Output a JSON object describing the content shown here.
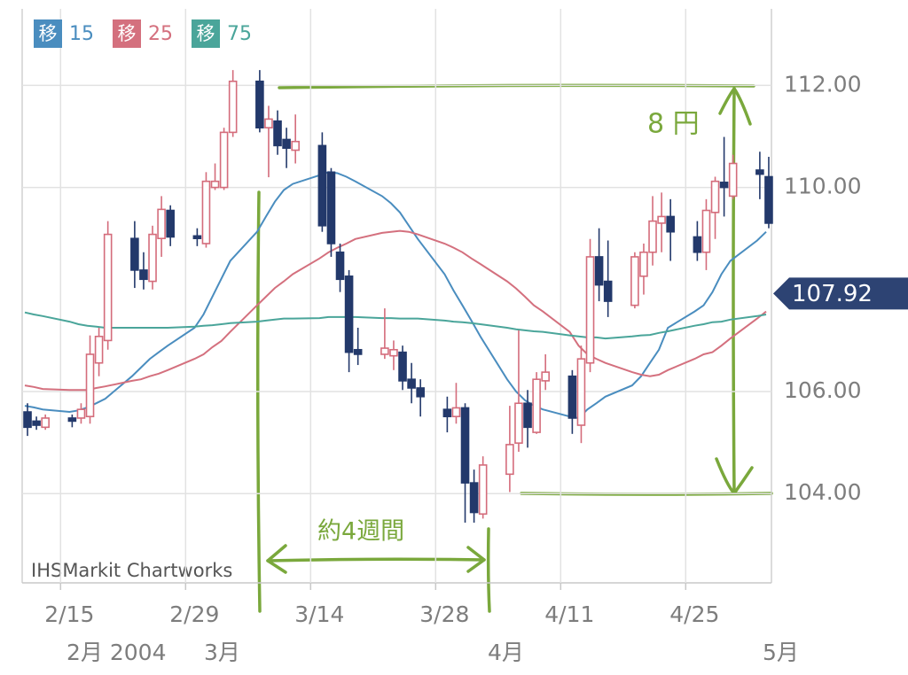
{
  "chart_data": {
    "type": "candlestick",
    "source": "IHSMarkit Chartworks",
    "x": [
      "2/11",
      "2/12",
      "2/13",
      "2/16",
      "2/17",
      "2/18",
      "2/19",
      "2/20",
      "2/23",
      "2/24",
      "2/25",
      "2/26",
      "2/27",
      "3/1",
      "3/2",
      "3/3",
      "3/4",
      "3/5",
      "3/8",
      "3/9",
      "3/10",
      "3/11",
      "3/12",
      "3/15",
      "3/16",
      "3/17",
      "3/18",
      "3/19",
      "3/22",
      "3/23",
      "3/24",
      "3/25",
      "3/26",
      "3/29",
      "3/30",
      "3/31",
      "4/1",
      "4/2",
      "4/5",
      "4/6",
      "4/7",
      "4/8",
      "4/9",
      "4/12",
      "4/13",
      "4/14",
      "4/15",
      "4/16",
      "4/19",
      "4/20",
      "4/21",
      "4/22",
      "4/23",
      "4/26",
      "4/27",
      "4/28",
      "4/29",
      "4/30",
      "5/3",
      "5/4"
    ],
    "open": [
      105.6,
      105.42,
      105.3,
      105.48,
      105.48,
      105.51,
      106.56,
      107.0,
      109.0,
      108.38,
      108.16,
      109.0,
      109.55,
      109.05,
      108.9,
      110.0,
      110.0,
      111.08,
      112.08,
      111.17,
      111.3,
      110.94,
      110.73,
      110.82,
      110.3,
      108.73,
      108.26,
      106.82,
      106.73,
      106.7,
      106.77,
      106.24,
      106.07,
      105.65,
      105.51,
      105.68,
      104.21,
      103.6,
      104.38,
      104.99,
      105.77,
      105.2,
      106.21,
      106.3,
      105.34,
      106.56,
      108.64,
      108.16,
      107.69,
      108.26,
      108.73,
      109.3,
      109.43,
      109.03,
      108.73,
      109.51,
      110.1,
      109.83,
      110.34,
      110.21
    ],
    "high": [
      105.77,
      105.51,
      105.55,
      105.55,
      105.77,
      107.1,
      107.25,
      109.34,
      109.34,
      108.73,
      109.25,
      109.83,
      109.65,
      109.2,
      110.3,
      110.47,
      111.17,
      112.3,
      112.3,
      111.6,
      111.51,
      111.17,
      111.43,
      111.08,
      110.38,
      108.9,
      108.38,
      107.25,
      107.63,
      107.0,
      106.9,
      106.56,
      106.24,
      105.9,
      106.17,
      105.77,
      104.47,
      104.73,
      105.72,
      107.2,
      106.03,
      106.38,
      106.73,
      106.42,
      106.9,
      108.99,
      109.2,
      108.96,
      108.73,
      108.9,
      109.83,
      109.9,
      109.77,
      109.34,
      109.77,
      110.21,
      110.99,
      110.64,
      110.7,
      110.6
    ],
    "low": [
      105.13,
      105.25,
      105.25,
      105.3,
      105.37,
      105.37,
      106.3,
      106.82,
      108.03,
      108.0,
      108.0,
      108.64,
      108.85,
      108.85,
      108.82,
      109.95,
      109.95,
      110.99,
      111.08,
      110.2,
      110.64,
      110.38,
      110.47,
      109.13,
      108.64,
      107.95,
      106.38,
      106.52,
      106.64,
      106.42,
      106.03,
      105.77,
      105.51,
      105.2,
      105.37,
      103.43,
      103.43,
      103.51,
      104.03,
      104.82,
      104.9,
      105.17,
      106.03,
      105.17,
      104.99,
      106.38,
      107.77,
      107.46,
      107.63,
      107.9,
      108.47,
      108.73,
      108.56,
      108.56,
      108.38,
      108.99,
      109.43,
      109.77,
      109.77,
      109.2
    ],
    "close": [
      105.3,
      105.34,
      105.48,
      105.42,
      105.65,
      106.73,
      107.08,
      109.08,
      108.38,
      108.2,
      109.08,
      109.57,
      109.03,
      109.0,
      110.12,
      110.12,
      111.08,
      112.08,
      111.17,
      111.34,
      110.82,
      110.77,
      110.9,
      109.25,
      108.9,
      108.2,
      106.77,
      106.73,
      106.85,
      106.82,
      106.21,
      106.07,
      105.9,
      105.51,
      105.68,
      104.21,
      103.63,
      104.56,
      104.96,
      105.77,
      105.3,
      106.24,
      106.38,
      105.48,
      106.64,
      108.64,
      108.09,
      107.77,
      108.64,
      108.73,
      109.34,
      109.43,
      109.13,
      108.73,
      109.55,
      110.12,
      110.0,
      110.47,
      110.26,
      109.3
    ],
    "up_color": "#d46c7b",
    "down_color": "#23396b",
    "series": [
      {
        "name": "15",
        "badge": "移",
        "color": "#4a8dbf",
        "values": [
          105.72,
          105.69,
          105.65,
          105.6,
          105.63,
          105.69,
          105.77,
          105.86,
          106.3,
          106.47,
          106.64,
          106.77,
          106.9,
          107.25,
          107.51,
          107.86,
          108.21,
          108.56,
          109.13,
          109.43,
          109.72,
          109.95,
          110.07,
          110.24,
          110.3,
          110.28,
          110.21,
          110.12,
          109.83,
          109.69,
          109.51,
          109.25,
          108.99,
          108.3,
          107.98,
          107.69,
          107.39,
          107.08,
          106.24,
          106.0,
          105.83,
          105.72,
          105.65,
          105.51,
          105.48,
          105.65,
          105.77,
          105.9,
          106.12,
          106.3,
          106.56,
          106.82,
          107.25,
          107.57,
          107.69,
          107.95,
          108.3,
          108.56,
          108.96,
          109.13
        ]
      },
      {
        "name": "25",
        "badge": "移",
        "color": "#d4707e",
        "values": [
          106.12,
          106.09,
          106.05,
          106.03,
          106.03,
          106.03,
          106.07,
          106.1,
          106.21,
          106.24,
          106.3,
          106.35,
          106.42,
          106.64,
          106.73,
          106.87,
          106.99,
          107.17,
          107.69,
          107.86,
          108.03,
          108.16,
          108.3,
          108.61,
          108.73,
          108.82,
          108.9,
          108.99,
          109.11,
          109.13,
          109.15,
          109.13,
          109.08,
          108.9,
          108.82,
          108.73,
          108.61,
          108.5,
          108.16,
          108.02,
          107.86,
          107.69,
          107.57,
          107.17,
          106.9,
          106.73,
          106.64,
          106.56,
          106.38,
          106.33,
          106.3,
          106.33,
          106.42,
          106.64,
          106.73,
          106.77,
          106.9,
          107.04,
          107.43,
          107.57
        ]
      },
      {
        "name": "75",
        "badge": "移",
        "color": "#4aa59a",
        "values": [
          107.55,
          107.51,
          107.48,
          107.37,
          107.32,
          107.29,
          107.27,
          107.25,
          107.25,
          107.25,
          107.25,
          107.25,
          107.25,
          107.27,
          107.29,
          107.3,
          107.32,
          107.34,
          107.37,
          107.39,
          107.41,
          107.43,
          107.43,
          107.44,
          107.46,
          107.46,
          107.46,
          107.46,
          107.44,
          107.44,
          107.43,
          107.43,
          107.43,
          107.39,
          107.37,
          107.36,
          107.34,
          107.32,
          107.25,
          107.22,
          107.2,
          107.18,
          107.17,
          107.1,
          107.08,
          107.06,
          107.06,
          107.04,
          107.08,
          107.1,
          107.11,
          107.15,
          107.18,
          107.29,
          107.32,
          107.36,
          107.37,
          107.41,
          107.48,
          107.51
        ]
      }
    ],
    "last_price": 107.92,
    "last_price_color": "#2d4373",
    "xlim": [
      "2/11",
      "5/4"
    ],
    "xticks": [
      "2/15",
      "2/29",
      "3/14",
      "3/28",
      "4/11",
      "4/25"
    ],
    "month_labels": [
      "2月 2004",
      "3月",
      "4月",
      "5月"
    ],
    "ylim": [
      102.25,
      113.5
    ],
    "yticks": [
      {
        "value": 104,
        "label": "104.00"
      },
      {
        "value": 106,
        "label": "106.00"
      },
      {
        "value": 110,
        "label": "110.00"
      },
      {
        "value": 112,
        "label": "112.00"
      }
    ],
    "grid": true,
    "annotations": [
      "8 円",
      "約4週間"
    ]
  }
}
